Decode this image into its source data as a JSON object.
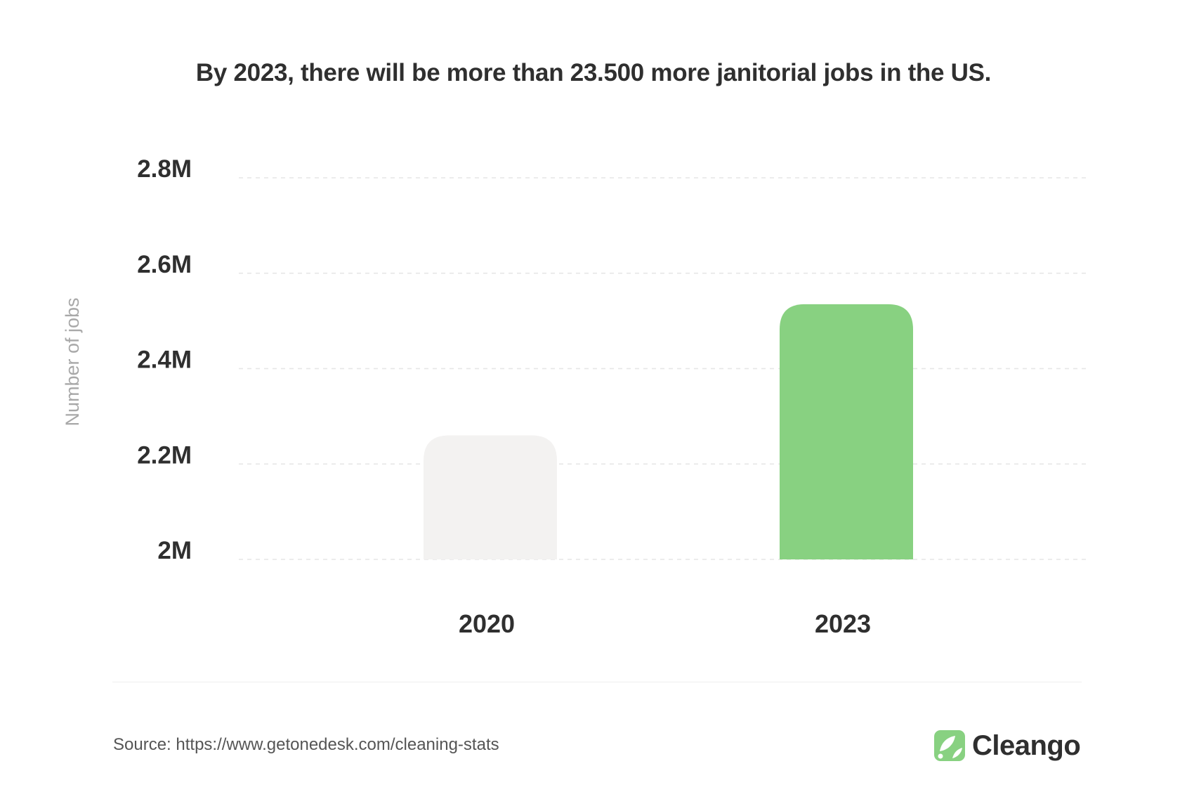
{
  "chart_data": {
    "type": "bar",
    "title": "By 2023, there will be more than 23.500 more janitorial jobs in the US.",
    "xlabel": "",
    "ylabel": "Number of jobs",
    "categories": [
      "2020",
      "2023"
    ],
    "values": [
      2260000,
      2535000
    ],
    "bar_colors": [
      "#f3f2f1",
      "#88d181"
    ],
    "ylim": [
      2000000,
      2800000
    ],
    "yticks": [
      {
        "value": 2000000,
        "label": "2M"
      },
      {
        "value": 2200000,
        "label": "2.2M"
      },
      {
        "value": 2400000,
        "label": "2.4M"
      },
      {
        "value": 2600000,
        "label": "2.6M"
      },
      {
        "value": 2800000,
        "label": "2.8M"
      }
    ],
    "grid": true,
    "legend": "none"
  },
  "footer": {
    "source": "Source: https://www.getonedesk.com/cleaning-stats"
  },
  "brand": {
    "name": "Cleango",
    "logo_icon": "cleango-leaf-icon",
    "accent_color": "#88d181"
  }
}
